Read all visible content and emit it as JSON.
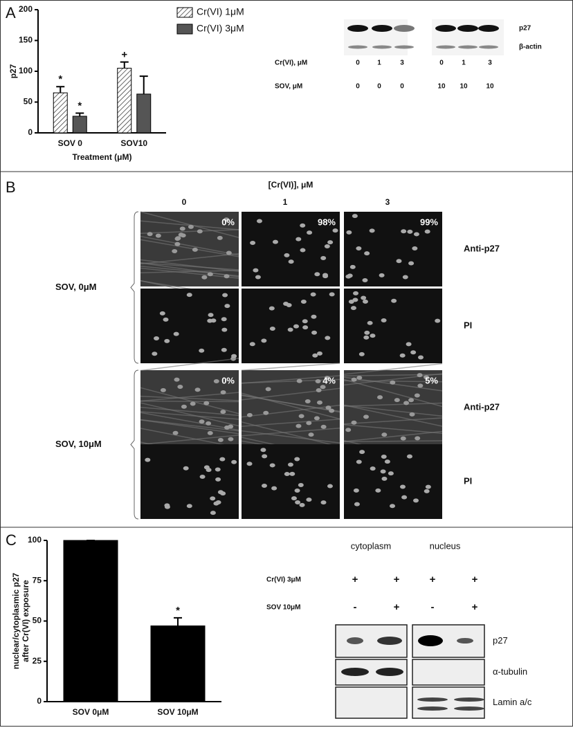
{
  "panel_letters": [
    "A",
    "B",
    "C"
  ],
  "chart_data": [
    {
      "type": "bar",
      "ylabel": "p27",
      "xlabel": "Treatment (μM)",
      "categories": [
        "SOV 0",
        "SOV10"
      ],
      "series": [
        {
          "name": "Cr(VI) 1μM",
          "color": "#ffffff",
          "hatch": true,
          "values": [
            65,
            105
          ],
          "errors": [
            10,
            10
          ],
          "markers": [
            "*",
            "+"
          ]
        },
        {
          "name": "Cr(VI) 3μM",
          "color": "#555555",
          "hatch": false,
          "values": [
            27,
            63
          ],
          "errors": [
            5,
            29
          ],
          "markers": [
            "*",
            null
          ]
        }
      ],
      "ylim": [
        0,
        200
      ],
      "yticks": [
        0,
        50,
        100,
        150,
        200
      ]
    },
    {
      "type": "bar",
      "ylabel": [
        "nuclear/cytoplasmic p27",
        "after Cr(VI) exposure"
      ],
      "categories": [
        "SOV 0μM",
        "SOV 10μM"
      ],
      "values": [
        100,
        47
      ],
      "errors": [
        0,
        5
      ],
      "markers": [
        null,
        "*"
      ],
      "color": "#000000",
      "ylim": [
        0,
        100
      ],
      "yticks": [
        0,
        25,
        50,
        75,
        100
      ]
    }
  ],
  "blot_a": {
    "bands": [
      "p27",
      "β-actin"
    ],
    "rows": [
      {
        "label": "Cr(VI), μM",
        "values": [
          "0",
          "1",
          "3",
          "0",
          "1",
          "3"
        ]
      },
      {
        "label": "SOV, μM",
        "values": [
          "0",
          "0",
          "0",
          "10",
          "10",
          "10"
        ]
      }
    ]
  },
  "panel_b": {
    "title": "[Cr(VI)],  μM",
    "columns": [
      "0",
      "1",
      "3"
    ],
    "row_labels": [
      "Anti-p27",
      "PI"
    ],
    "groups": [
      {
        "label": "SOV, 0μM",
        "percents": [
          "0%",
          "98%",
          "99%"
        ]
      },
      {
        "label": "SOV, 10μM",
        "percents": [
          "0%",
          "4%",
          "5%"
        ]
      }
    ]
  },
  "blot_c": {
    "fractions": [
      "cytoplasm",
      "nucleus"
    ],
    "rows": [
      {
        "label": "Cr(VI) 3μM",
        "values": [
          "+",
          "+",
          "+",
          "+"
        ]
      },
      {
        "label": "SOV 10μM",
        "values": [
          "-",
          "+",
          "-",
          "+"
        ]
      }
    ],
    "bands": [
      "p27",
      "α-tubulin",
      "Lamin a/c"
    ]
  }
}
